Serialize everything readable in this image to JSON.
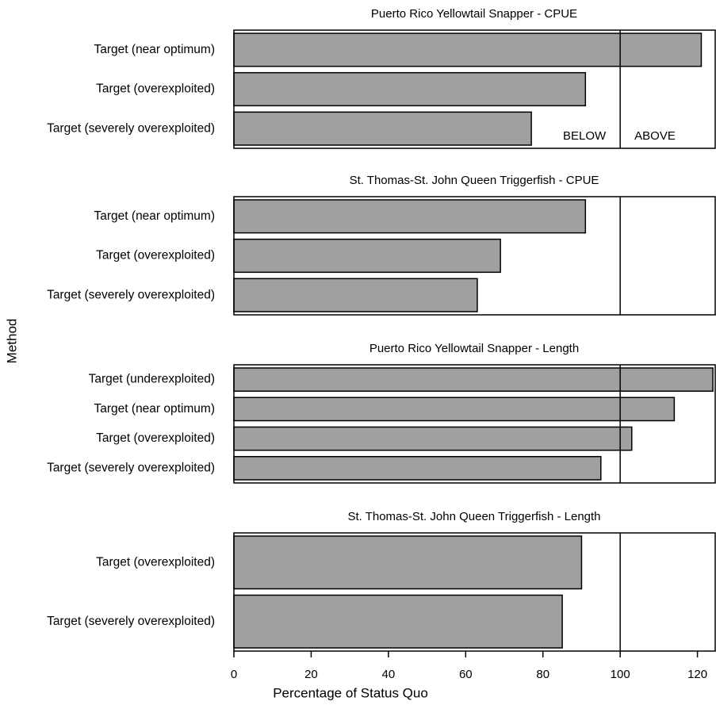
{
  "ylabel": "Method",
  "chart_data": [
    {
      "type": "bar",
      "orientation": "horizontal",
      "title": "Puerto Rico Yellowtail Snapper - CPUE",
      "categories": [
        "Target (near optimum)",
        "Target (overexploited)",
        "Target (severely overexploited)"
      ],
      "values": [
        121,
        91,
        77
      ],
      "color": "#a0a0a0",
      "xlim": [
        0,
        125
      ],
      "reference_line": 100,
      "annotations": [
        "BELOW",
        "ABOVE"
      ]
    },
    {
      "type": "bar",
      "orientation": "horizontal",
      "title": "St. Thomas-St. John Queen Triggerfish - CPUE",
      "categories": [
        "Target (near optimum)",
        "Target (overexploited)",
        "Target (severely overexploited)"
      ],
      "values": [
        91,
        69,
        63
      ],
      "color": "#a0a0a0",
      "xlim": [
        0,
        125
      ],
      "reference_line": 100
    },
    {
      "type": "bar",
      "orientation": "horizontal",
      "title": "Puerto Rico Yellowtail Snapper - Length",
      "categories": [
        "Target (underexploited)",
        "Target (near optimum)",
        "Target (overexploited)",
        "Target (severely overexploited)"
      ],
      "values": [
        124,
        114,
        103,
        95
      ],
      "color": "#a0a0a0",
      "xlim": [
        0,
        125
      ],
      "reference_line": 100
    },
    {
      "type": "bar",
      "orientation": "horizontal",
      "title": "St. Thomas-St. John Queen Triggerfish - Length",
      "categories": [
        "Target (overexploited)",
        "Target (severely overexploited)"
      ],
      "values": [
        90,
        85
      ],
      "color": "#a0a0a0",
      "xlim": [
        0,
        125
      ],
      "reference_line": 100,
      "xticks": [
        0,
        20,
        40,
        60,
        80,
        100,
        120
      ],
      "xlabel": "Percentage of Status Quo"
    }
  ]
}
